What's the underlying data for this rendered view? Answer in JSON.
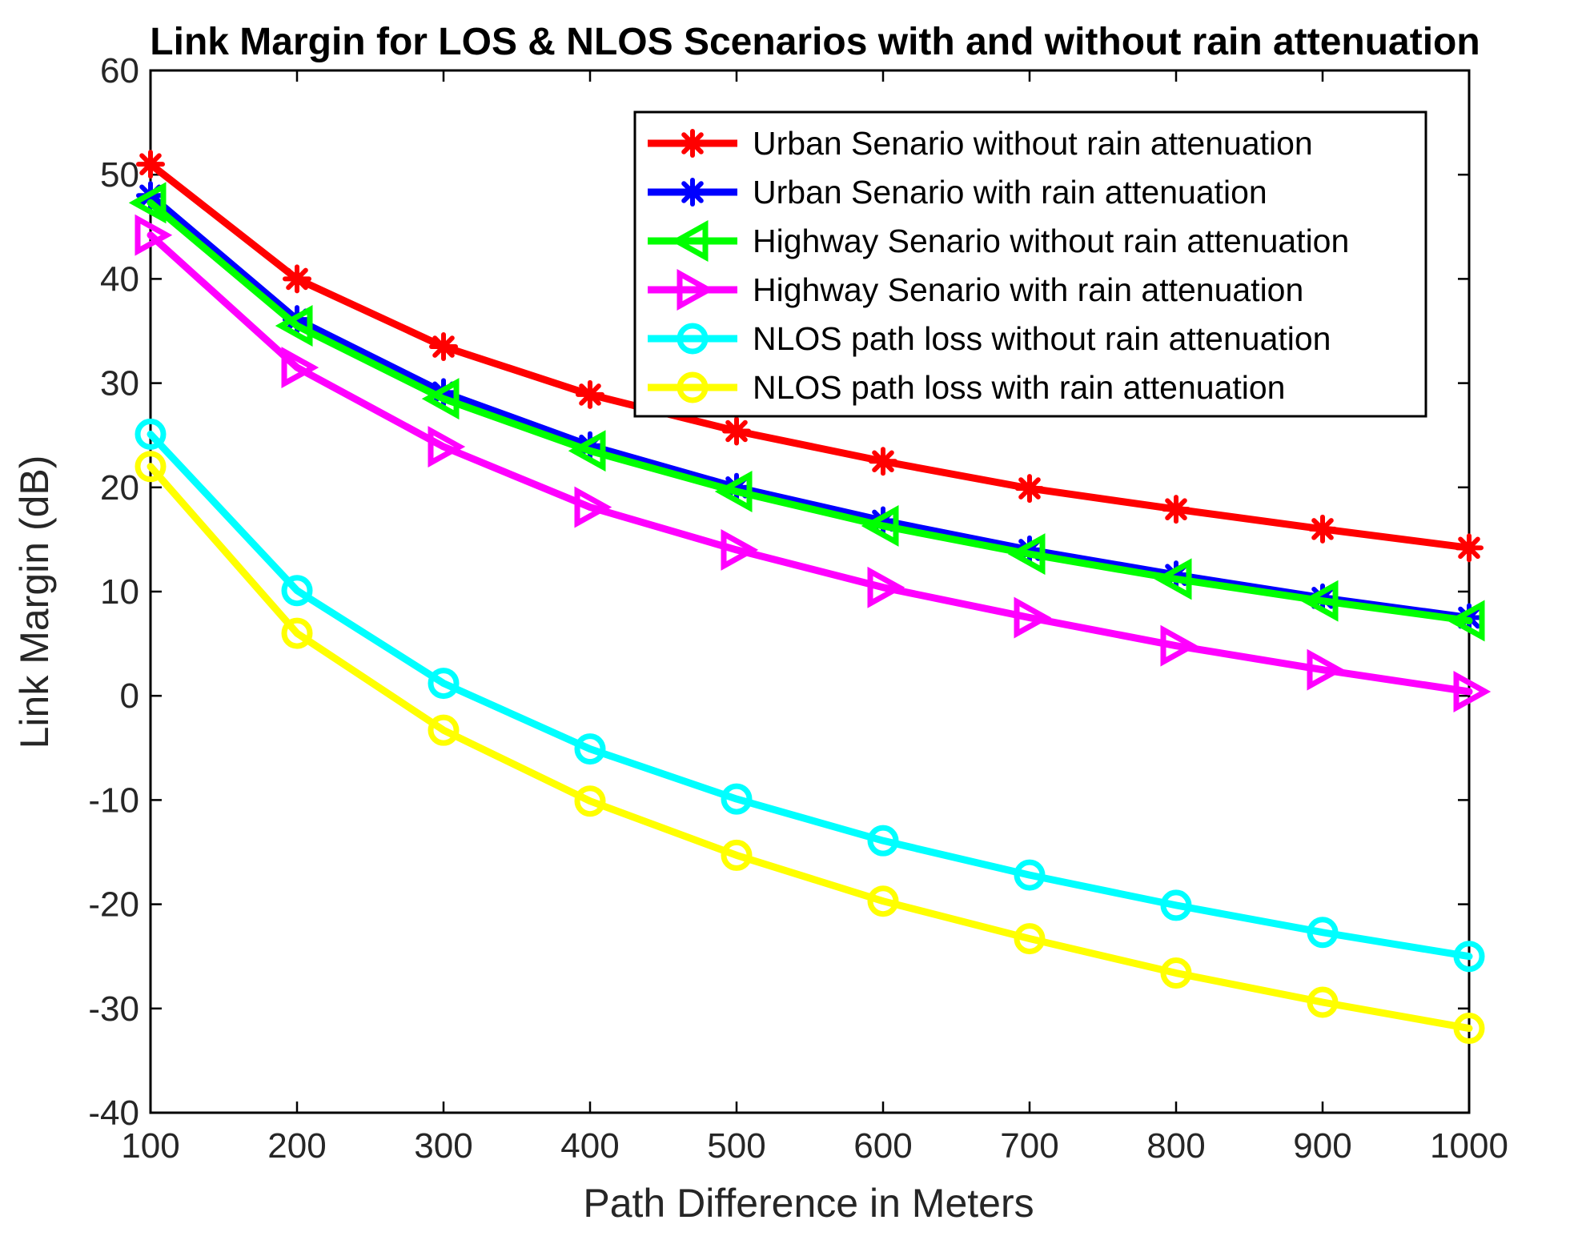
{
  "chart_data": {
    "type": "line",
    "title": "Link Margin for LOS & NLOS Scenarios with and without rain attenuation",
    "xlabel": "Path Difference in Meters",
    "ylabel": "Link Margin (dB)",
    "xlim": [
      100,
      1000
    ],
    "ylim": [
      -40,
      60
    ],
    "xticks": [
      100,
      200,
      300,
      400,
      500,
      600,
      700,
      800,
      900,
      1000
    ],
    "yticks": [
      -40,
      -30,
      -20,
      -10,
      0,
      10,
      20,
      30,
      40,
      50,
      60
    ],
    "legend_position": "top-right",
    "x": [
      100,
      200,
      300,
      400,
      500,
      600,
      700,
      800,
      900,
      1000
    ],
    "series": [
      {
        "name": "Urban Senario without rain attenuation",
        "color": "#ff0000",
        "marker": "asterisk",
        "values": [
          51,
          40,
          33.5,
          28.9,
          25.4,
          22.5,
          19.9,
          17.9,
          16,
          14.2
        ]
      },
      {
        "name": "Urban Senario with rain attenuation",
        "color": "#0000ff",
        "marker": "asterisk",
        "values": [
          48,
          36.1,
          29.1,
          24,
          20,
          16.8,
          14,
          11.6,
          9.4,
          7.5
        ]
      },
      {
        "name": "Highway Senario without rain attenuation",
        "color": "#00ff00",
        "marker": "triangle-left",
        "values": [
          47.3,
          35.5,
          28.5,
          23.5,
          19.6,
          16.3,
          13.6,
          11.2,
          9.1,
          7.2
        ]
      },
      {
        "name": "Highway Senario with rain attenuation",
        "color": "#ff00ff",
        "marker": "triangle-right",
        "values": [
          44.2,
          31.5,
          23.9,
          18.1,
          14,
          10.4,
          7.5,
          4.8,
          2.5,
          0.4
        ]
      },
      {
        "name": "NLOS path loss without rain attenuation",
        "color": "#00ffff",
        "marker": "circle",
        "values": [
          25.1,
          10.1,
          1.2,
          -5.1,
          -9.9,
          -13.9,
          -17.2,
          -20.1,
          -22.7,
          -25
        ]
      },
      {
        "name": "NLOS path loss with rain attenuation",
        "color": "#ffff00",
        "marker": "circle",
        "values": [
          22,
          6,
          -3.3,
          -10.1,
          -15.3,
          -19.7,
          -23.3,
          -26.6,
          -29.4,
          -31.9
        ]
      }
    ]
  }
}
